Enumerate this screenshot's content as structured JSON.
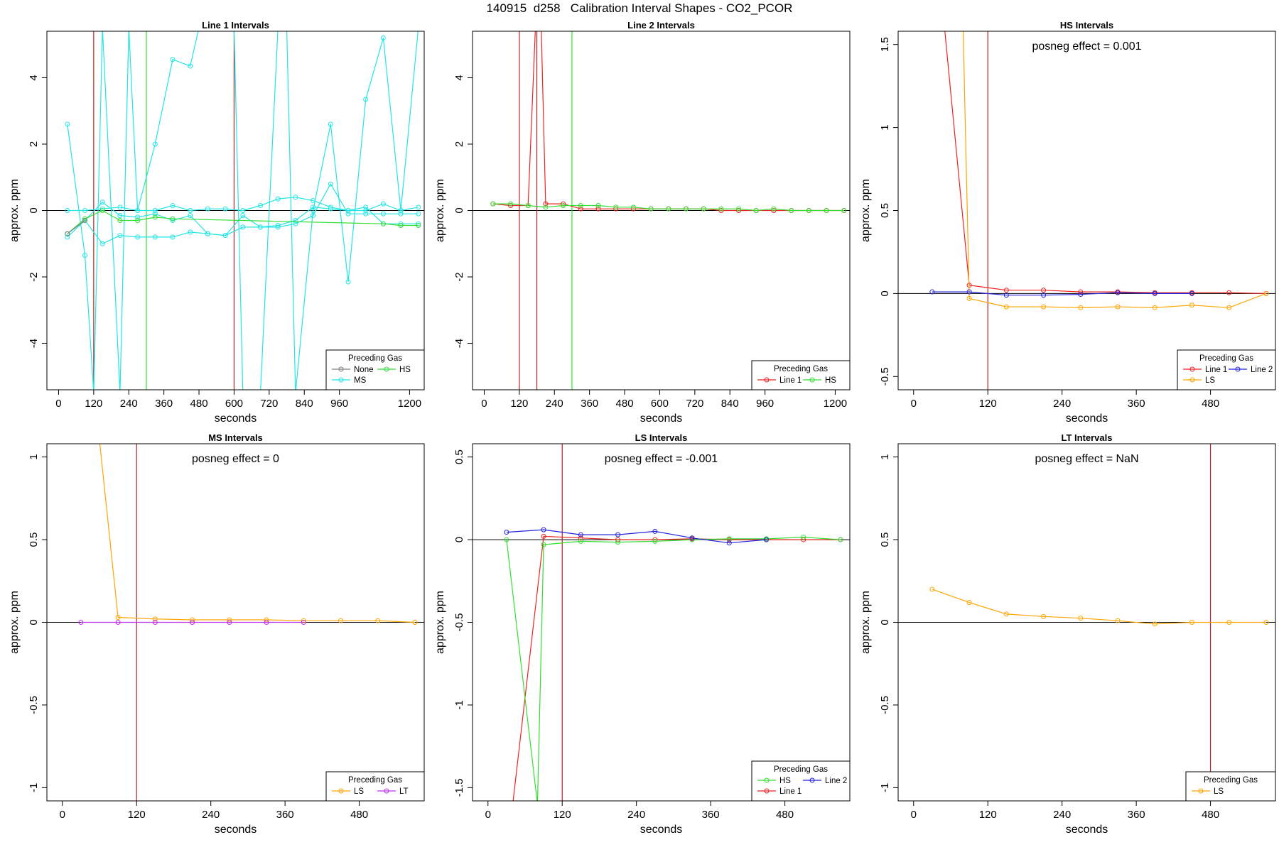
{
  "page_title": "140915  d258   Calibration Interval Shapes - CO2_PCOR",
  "colors": {
    "None": "#808080",
    "HS": "#33dd33",
    "MS": "#22e5e5",
    "Line 1": "#ee2222",
    "Line 2": "#2222dd",
    "LS": "#ffa500",
    "LT": "#bb33ee",
    "vline_red": "#b22222",
    "vline_green": "#33dd33"
  },
  "chart_data": [
    {
      "type": "line",
      "title": "Line 1 Intervals",
      "xlabel": "seconds",
      "ylabel": "approx. ppm",
      "xlim": [
        -40,
        1250
      ],
      "ylim": [
        -5.4,
        5.4
      ],
      "xticks": [
        0,
        120,
        240,
        360,
        480,
        600,
        720,
        840,
        960,
        1200
      ],
      "yticks": [
        -4,
        -2,
        0,
        2,
        4
      ],
      "posneg": "",
      "vlines": [
        {
          "x": 120,
          "color": "vline_red"
        },
        {
          "x": 300,
          "color": "vline_green"
        },
        {
          "x": 600,
          "color": "vline_red"
        }
      ],
      "legend": {
        "title": "Preceding Gas",
        "position": "bottom-right",
        "rows": [
          [
            "None",
            "HS"
          ],
          [
            "MS"
          ]
        ]
      },
      "series": [
        {
          "name": "MS",
          "color": "MS",
          "x": [
            30,
            90,
            150,
            210,
            270,
            330,
            390,
            450,
            510,
            570,
            630,
            690,
            750,
            810,
            870,
            930,
            990,
            1050,
            1110,
            1170,
            1230
          ],
          "y": [
            0.0,
            0.0,
            0.05,
            0.1,
            0.0,
            0.0,
            0.15,
            0.0,
            0.05,
            0.05,
            0.0,
            0.15,
            0.35,
            0.4,
            0.3,
            0.1,
            0.0,
            0.0,
            0.2,
            0.0,
            0.1
          ]
        },
        {
          "name": "MS",
          "color": "MS",
          "x": [
            30,
            90,
            150,
            210,
            270,
            330,
            390,
            450,
            510,
            570,
            630,
            690,
            750,
            810,
            870,
            930,
            990,
            1050,
            1110,
            1170,
            1230
          ],
          "y": [
            -0.7,
            -0.3,
            0.25,
            -0.15,
            -0.2,
            -0.1,
            -0.3,
            -0.15,
            -0.7,
            -0.75,
            -0.15,
            -0.5,
            -0.5,
            -0.4,
            -0.15,
            0.8,
            -0.1,
            -0.1,
            -0.1,
            -0.1,
            -0.1
          ]
        },
        {
          "name": "MS",
          "color": "MS",
          "x": [
            30,
            90,
            150,
            210,
            270,
            330,
            390,
            450,
            510,
            570,
            630,
            690,
            750,
            810,
            870,
            930,
            990,
            1050,
            1110,
            1170,
            1230
          ],
          "y": [
            -0.8,
            -0.3,
            -1.0,
            -0.75,
            -0.8,
            -0.8,
            -0.8,
            -0.65,
            -0.7,
            -0.75,
            -0.5,
            -0.5,
            -0.45,
            -0.3,
            0.1,
            0.05,
            0.0,
            0.1,
            -0.4,
            -0.4,
            -0.4
          ]
        },
        {
          "name": "MS",
          "color": "MS",
          "x": [
            30,
            90,
            120,
            150,
            210,
            240,
            270,
            330,
            390,
            450,
            480,
            600,
            630,
            690,
            750,
            780,
            810,
            870,
            930,
            990,
            1050,
            1110,
            1170,
            1230
          ],
          "y": [
            2.6,
            -1.35,
            -5.5,
            5.5,
            -5.5,
            5.5,
            0.0,
            2.0,
            4.55,
            4.35,
            5.5,
            5.5,
            -5.5,
            -5.5,
            5.5,
            5.5,
            -5.5,
            0.0,
            2.6,
            -2.15,
            3.35,
            5.2,
            0.0,
            5.5
          ]
        },
        {
          "name": "HS",
          "color": "HS",
          "x": [
            30,
            90,
            150,
            210,
            270,
            330,
            390,
            1110,
            1170,
            1230
          ],
          "y": [
            -0.7,
            -0.25,
            0.0,
            -0.3,
            -0.3,
            -0.2,
            -0.25,
            -0.4,
            -0.45,
            -0.45
          ]
        },
        {
          "name": "None",
          "color": "None",
          "x": [
            30,
            90
          ],
          "y": [
            -0.7,
            -0.3
          ]
        }
      ]
    },
    {
      "type": "line",
      "title": "Line 2 Intervals",
      "xlabel": "seconds",
      "ylabel": "approx. ppm",
      "xlim": [
        -40,
        1250
      ],
      "ylim": [
        -5.4,
        5.4
      ],
      "xticks": [
        0,
        120,
        240,
        360,
        480,
        600,
        720,
        840,
        960,
        1200
      ],
      "yticks": [
        -4,
        -2,
        0,
        2,
        4
      ],
      "posneg": "",
      "vlines": [
        {
          "x": 120,
          "color": "vline_red"
        },
        {
          "x": 180,
          "color": "vline_red"
        },
        {
          "x": 300,
          "color": "vline_green"
        }
      ],
      "legend": {
        "title": "Preceding Gas",
        "position": "bottom-right",
        "rows": [
          [
            "Line 1",
            "HS"
          ]
        ]
      },
      "series": [
        {
          "name": "Line 1",
          "color": "Line 1",
          "x": [
            30,
            90,
            150,
            175,
            195,
            210,
            270,
            330,
            390,
            450,
            510,
            570,
            630,
            690,
            750,
            810,
            870,
            930,
            990,
            1050,
            1110,
            1170,
            1230
          ],
          "y": [
            0.2,
            0.15,
            0.15,
            5.5,
            5.5,
            0.2,
            0.2,
            0.05,
            0.05,
            0.05,
            0.05,
            0.05,
            0.05,
            0.05,
            0.05,
            0.0,
            0.0,
            0.0,
            0.0,
            0.0,
            0.0,
            0.0,
            0.0
          ]
        },
        {
          "name": "HS",
          "color": "HS",
          "x": [
            30,
            90,
            150,
            210,
            270,
            330,
            390,
            450,
            510,
            570,
            630,
            690,
            750,
            810,
            870,
            930,
            990,
            1050,
            1110,
            1170,
            1230
          ],
          "y": [
            0.2,
            0.2,
            0.15,
            0.1,
            0.15,
            0.15,
            0.15,
            0.1,
            0.1,
            0.05,
            0.05,
            0.05,
            0.05,
            0.05,
            0.05,
            0.0,
            0.05,
            0.0,
            0.0,
            0.0,
            0.0
          ]
        }
      ]
    },
    {
      "type": "line",
      "title": "HS Intervals",
      "xlabel": "seconds",
      "ylabel": "approx. ppm",
      "xlim": [
        -25,
        585
      ],
      "ylim": [
        -0.58,
        1.58
      ],
      "xticks": [
        0,
        120,
        240,
        360,
        480
      ],
      "yticks": [
        -0.5,
        0.0,
        0.5,
        1.0,
        1.5
      ],
      "posneg": "posneg effect = 0.001",
      "vlines": [
        {
          "x": 120,
          "color": "vline_red"
        }
      ],
      "legend": {
        "title": "Preceding Gas",
        "position": "bottom-right",
        "rows": [
          [
            "Line 1",
            "Line 2"
          ],
          [
            "LS"
          ]
        ]
      },
      "series": [
        {
          "name": "Line 1",
          "color": "Line 1",
          "x": [
            50,
            90,
            150,
            210,
            270,
            330,
            390,
            450,
            510,
            570
          ],
          "y": [
            1.6,
            0.05,
            0.02,
            0.02,
            0.01,
            0.01,
            0.005,
            0.005,
            0.005,
            0.0
          ]
        },
        {
          "name": "LS",
          "color": "LS",
          "x": [
            80,
            90,
            150,
            210,
            270,
            330,
            390,
            450,
            510,
            570
          ],
          "y": [
            1.6,
            -0.03,
            -0.08,
            -0.08,
            -0.085,
            -0.08,
            -0.085,
            -0.07,
            -0.085,
            0.0
          ]
        },
        {
          "name": "Line 2",
          "color": "Line 2",
          "x": [
            30,
            90,
            150,
            210,
            270,
            330,
            390,
            450
          ],
          "y": [
            0.01,
            0.01,
            -0.01,
            -0.01,
            -0.005,
            0.005,
            0.0,
            0.0
          ]
        }
      ]
    },
    {
      "type": "line",
      "title": "MS Intervals",
      "xlabel": "seconds",
      "ylabel": "approx. ppm",
      "xlim": [
        -25,
        585
      ],
      "ylim": [
        -1.08,
        1.08
      ],
      "xticks": [
        0,
        120,
        240,
        360,
        480
      ],
      "yticks": [
        -1.0,
        -0.5,
        0.0,
        0.5,
        1.0
      ],
      "posneg": "posneg effect = 0",
      "vlines": [
        {
          "x": 120,
          "color": "vline_red"
        }
      ],
      "legend": {
        "title": "Preceding Gas",
        "position": "bottom-right",
        "rows": [
          [
            "LS",
            "LT"
          ]
        ]
      },
      "series": [
        {
          "name": "LS",
          "color": "LS",
          "x": [
            60,
            90,
            150,
            210,
            270,
            330,
            390,
            450,
            510,
            570
          ],
          "y": [
            1.1,
            0.03,
            0.02,
            0.015,
            0.015,
            0.015,
            0.01,
            0.01,
            0.01,
            0.0
          ]
        },
        {
          "name": "LT",
          "color": "LT",
          "x": [
            30,
            90,
            150,
            210,
            270,
            330,
            390
          ],
          "y": [
            0.0,
            0.0,
            0.0,
            0.0,
            0.0,
            0.0,
            0.0
          ]
        }
      ]
    },
    {
      "type": "line",
      "title": "LS Intervals",
      "xlabel": "seconds",
      "ylabel": "approx. ppm",
      "xlim": [
        -25,
        585
      ],
      "ylim": [
        -1.58,
        0.58
      ],
      "xticks": [
        0,
        120,
        240,
        360,
        480
      ],
      "yticks": [
        -1.5,
        -1.0,
        -0.5,
        0.0,
        0.5
      ],
      "posneg": "posneg effect = -0.001",
      "vlines": [
        {
          "x": 120,
          "color": "vline_red"
        }
      ],
      "legend": {
        "title": "Preceding Gas",
        "position": "bottom-right",
        "rows": [
          [
            "HS",
            "Line 2"
          ],
          [
            "Line 1"
          ]
        ]
      },
      "series": [
        {
          "name": "Line 1",
          "color": "Line 1",
          "x": [
            40,
            90,
            150,
            210,
            270,
            330,
            390,
            450,
            510,
            570
          ],
          "y": [
            -1.6,
            0.02,
            0.01,
            0.0,
            0.0,
            0.005,
            0.0,
            0.0,
            0.0,
            0.0
          ]
        },
        {
          "name": "HS",
          "color": "HS",
          "x": [
            30,
            80,
            90,
            150,
            210,
            270,
            330,
            390,
            450,
            510,
            570
          ],
          "y": [
            0.0,
            -1.6,
            -0.03,
            -0.01,
            -0.015,
            -0.01,
            0.0,
            0.005,
            0.005,
            0.015,
            0.0
          ]
        },
        {
          "name": "Line 2",
          "color": "Line 2",
          "x": [
            30,
            90,
            150,
            210,
            270,
            330,
            390,
            450
          ],
          "y": [
            0.045,
            0.06,
            0.03,
            0.03,
            0.05,
            0.01,
            -0.02,
            0.0
          ]
        }
      ]
    },
    {
      "type": "line",
      "title": "LT Intervals",
      "xlabel": "seconds",
      "ylabel": "approx. ppm",
      "xlim": [
        -25,
        585
      ],
      "ylim": [
        -1.08,
        1.08
      ],
      "xticks": [
        0,
        120,
        240,
        360,
        480
      ],
      "yticks": [
        -1.0,
        -0.5,
        0.0,
        0.5,
        1.0
      ],
      "posneg": "posneg effect = NaN",
      "vlines": [
        {
          "x": 480,
          "color": "vline_red"
        }
      ],
      "legend": {
        "title": "Preceding Gas",
        "position": "bottom-right",
        "rows": [
          [
            "LS"
          ]
        ]
      },
      "series": [
        {
          "name": "LS",
          "color": "LS",
          "x": [
            30,
            90,
            150,
            210,
            270,
            330,
            390,
            450,
            510,
            570
          ],
          "y": [
            0.2,
            0.12,
            0.05,
            0.035,
            0.025,
            0.01,
            -0.01,
            0.0,
            0.0,
            0.0
          ]
        }
      ]
    }
  ]
}
